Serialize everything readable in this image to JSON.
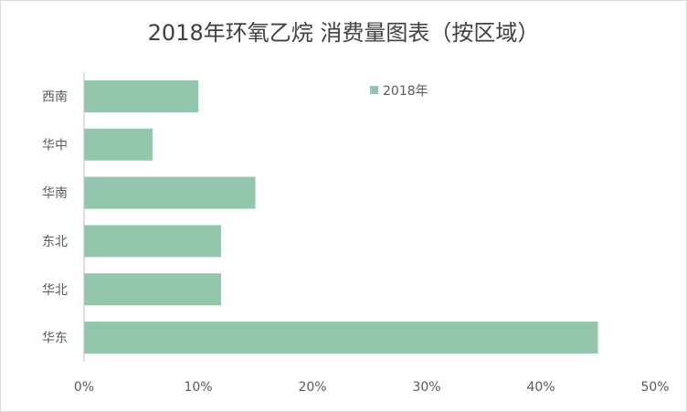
{
  "chart_data": {
    "type": "bar",
    "orientation": "horizontal",
    "title": "2018年环氧乙烷 消费量图表（按区域）",
    "categories": [
      "西南",
      "华中",
      "华南",
      "东北",
      "华北",
      "华东"
    ],
    "series": [
      {
        "name": "2018年",
        "values": [
          10,
          6,
          15,
          12,
          12,
          45
        ]
      }
    ],
    "xlim": [
      0,
      50
    ],
    "x_ticks": [
      "0%",
      "10%",
      "20%",
      "30%",
      "40%",
      "50%"
    ],
    "grid": false,
    "legend_position": "top-right",
    "colors": {
      "bar": "#93c6ad",
      "axis": "#bfbfbf",
      "text": "#595959",
      "title": "#404040"
    }
  }
}
